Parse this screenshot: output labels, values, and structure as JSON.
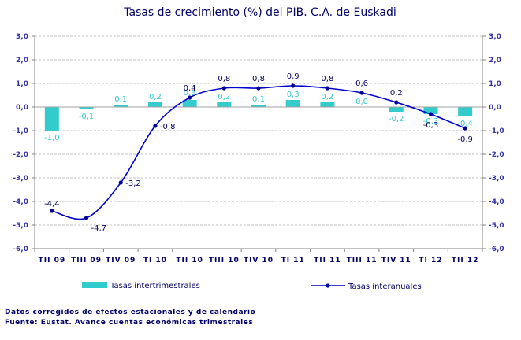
{
  "chart_data": {
    "type": "bar",
    "title": "Tasas de crecimiento (%) del PIB. C.A. de Euskadi",
    "categories": [
      "TII 09",
      "TIII 09",
      "TIV 09",
      "TI 10",
      "TII 10",
      "TIII 10",
      "TIV 10",
      "TI 11",
      "TII 11",
      "TIII 11",
      "TIV 11",
      "TI 12",
      "TII 12"
    ],
    "ylim": [
      -6,
      3
    ],
    "y_ticks": [
      "3,0",
      "2,0",
      "1,0",
      "0,0",
      "-1,0",
      "-2,0",
      "-3,0",
      "-4,0",
      "-5,0",
      "-6,0"
    ],
    "grid": true,
    "legend_position": "bottom",
    "series": [
      {
        "name": "Tasas intertrimestrales",
        "kind": "bar",
        "color": "#33cccc",
        "values": [
          -1.0,
          -0.1,
          0.1,
          0.2,
          0.3,
          0.2,
          0.1,
          0.3,
          0.2,
          0.0,
          -0.2,
          -0.3,
          -0.4
        ],
        "labels": [
          "-1,0",
          "-0,1",
          "0,1",
          "0,2",
          "0,3",
          "0,2",
          "0,1",
          "0,3",
          "0,2",
          "0,0",
          "-0,2",
          "-0,3",
          "-0,4"
        ]
      },
      {
        "name": "Tasas interanuales",
        "kind": "line",
        "color": "#0000cc",
        "values": [
          -4.4,
          -4.7,
          -3.2,
          -0.8,
          0.4,
          0.8,
          0.8,
          0.9,
          0.8,
          0.6,
          0.2,
          -0.3,
          -0.9
        ],
        "labels": [
          "-4,4",
          "-4,7",
          "-3,2",
          "-0,8",
          "0,4",
          "0,8",
          "0,8",
          "0,9",
          "0,8",
          "0,6",
          "0,2",
          "-0,3",
          "-0,9"
        ]
      }
    ]
  },
  "notes": {
    "line1": "Datos corregidos de efectos estacionales y de calendario",
    "line2": "Fuente: Eustat. Avance cuentas económicas trimestrales"
  }
}
